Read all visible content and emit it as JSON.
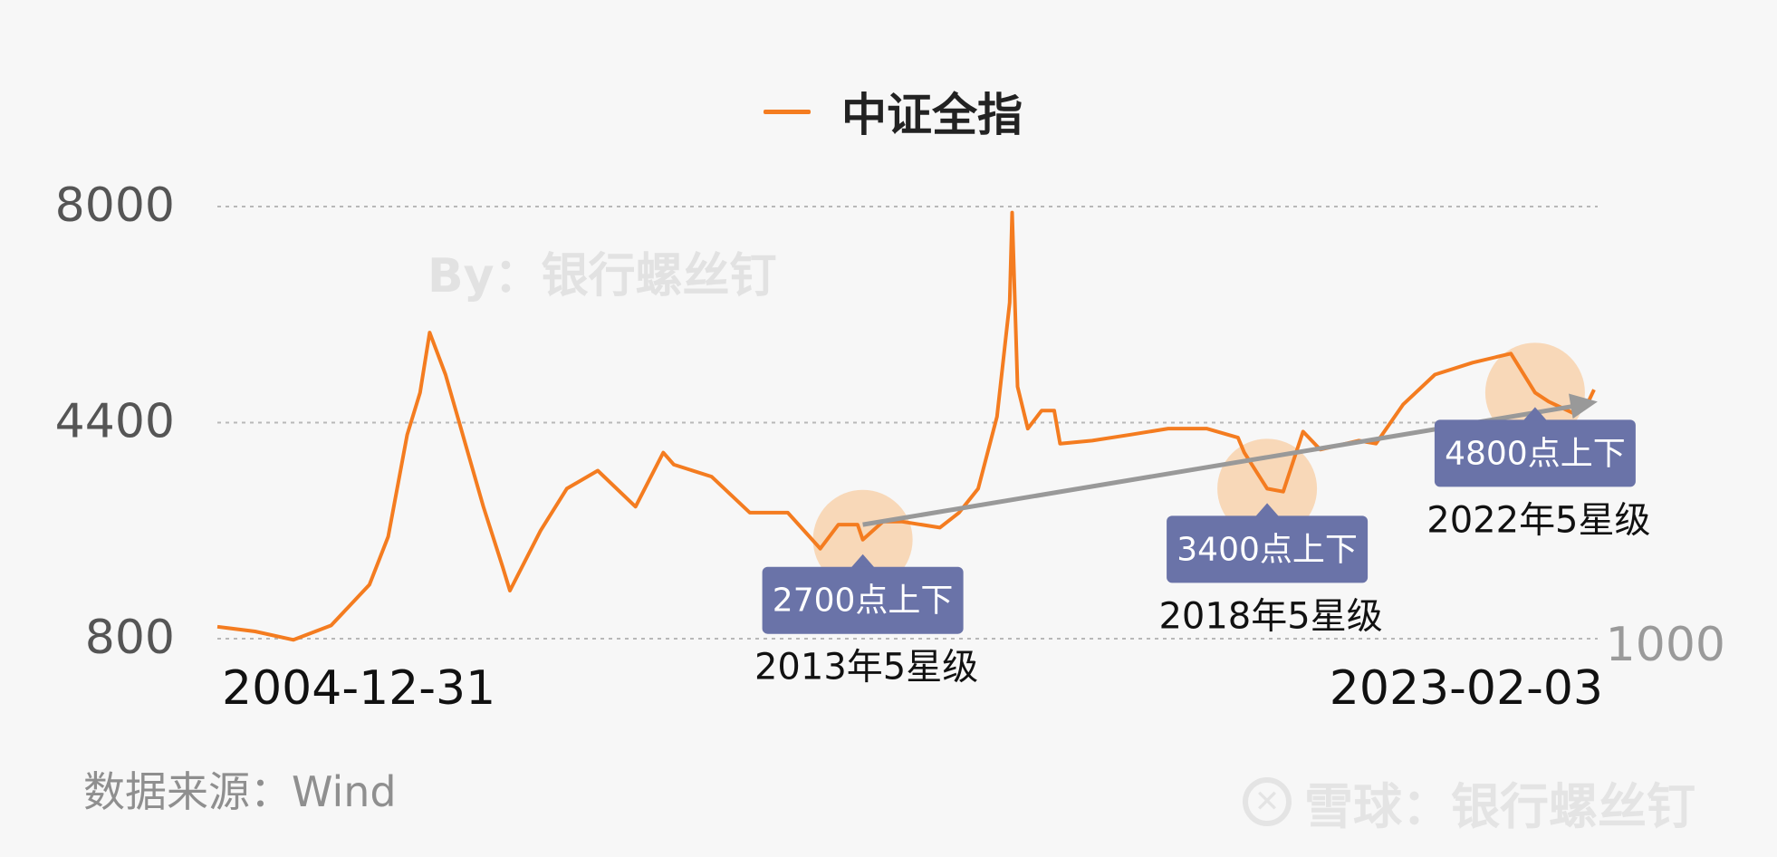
{
  "legend": {
    "label": "中证全指",
    "color": "#f47c20"
  },
  "watermark": "By：银行螺丝钉",
  "source": "数据来源：Wind",
  "brand": {
    "icon": "xueqiu-logo-icon",
    "text": "雪球：银行螺丝钉"
  },
  "chart_data": {
    "type": "line",
    "series": [
      {
        "name": "中证全指",
        "color": "#f47c20",
        "x": [
          "2004-12-31",
          "2005-06-30",
          "2005-12-31",
          "2006-06-30",
          "2006-12-31",
          "2007-03-31",
          "2007-06-30",
          "2007-08-31",
          "2007-10-16",
          "2007-12-31",
          "2008-03-31",
          "2008-06-30",
          "2008-09-30",
          "2008-11-04",
          "2009-03-31",
          "2009-08-04",
          "2009-12-31",
          "2010-06-30",
          "2010-11-10",
          "2010-12-31",
          "2011-06-30",
          "2011-12-31",
          "2012-06-30",
          "2012-12-03",
          "2013-02-28",
          "2013-05-31",
          "2013-06-25",
          "2013-09-30",
          "2013-12-31",
          "2014-06-30",
          "2014-09-30",
          "2014-12-31",
          "2015-03-31",
          "2015-05-31",
          "2015-06-12",
          "2015-07-08",
          "2015-08-26",
          "2015-10-31",
          "2015-12-31",
          "2016-01-28",
          "2016-06-30",
          "2016-12-31",
          "2017-06-30",
          "2017-12-31",
          "2018-05-31",
          "2018-06-30",
          "2018-10-18",
          "2019-01-03",
          "2019-04-08",
          "2019-06-30",
          "2019-12-31",
          "2020-03-23",
          "2020-07-31",
          "2020-12-31",
          "2021-06-30",
          "2021-12-31",
          "2022-04-26",
          "2022-06-30",
          "2022-10-31",
          "2022-12-31",
          "2023-02-03"
        ],
        "y": [
          1000,
          920,
          780,
          1020,
          1700,
          2500,
          4200,
          4900,
          5900,
          5200,
          4100,
          3000,
          2000,
          1600,
          2600,
          3300,
          3600,
          3000,
          3900,
          3700,
          3500,
          2900,
          2900,
          2300,
          2700,
          2700,
          2450,
          2750,
          2750,
          2650,
          2900,
          3300,
          4500,
          6400,
          7900,
          5000,
          4300,
          4600,
          4600,
          4050,
          4100,
          4200,
          4300,
          4300,
          4150,
          3900,
          3300,
          3250,
          4250,
          3950,
          4100,
          4050,
          4700,
          5200,
          5400,
          5550,
          4900,
          4750,
          4550,
          4700,
          4950
        ]
      }
    ],
    "yticks": [
      "8000",
      "4400",
      "800"
    ],
    "ylim": [
      800,
      8000
    ],
    "right_tick": "1000",
    "xtick_labels": [
      "2004-12-31",
      "2023-02-03"
    ],
    "grid": true,
    "legend_position": "top-center",
    "trend_arrow": {
      "from": [
        "2013-06-25",
        2700
      ],
      "to": [
        "2023-02-20",
        4750
      ]
    },
    "annotations": [
      {
        "date": "2013-06-25",
        "badge": "2700点上下",
        "caption": "2013年5星级"
      },
      {
        "date": "2018-10-18",
        "badge": "3400点上下",
        "caption": "2018年5星级"
      },
      {
        "date": "2022-04-26",
        "badge": "4800点上下",
        "caption": "2022年5星级"
      }
    ],
    "annotation_colors": {
      "badge": "#6a73a8",
      "highlight": "#f8d2ad",
      "arrow": "#999999"
    }
  }
}
